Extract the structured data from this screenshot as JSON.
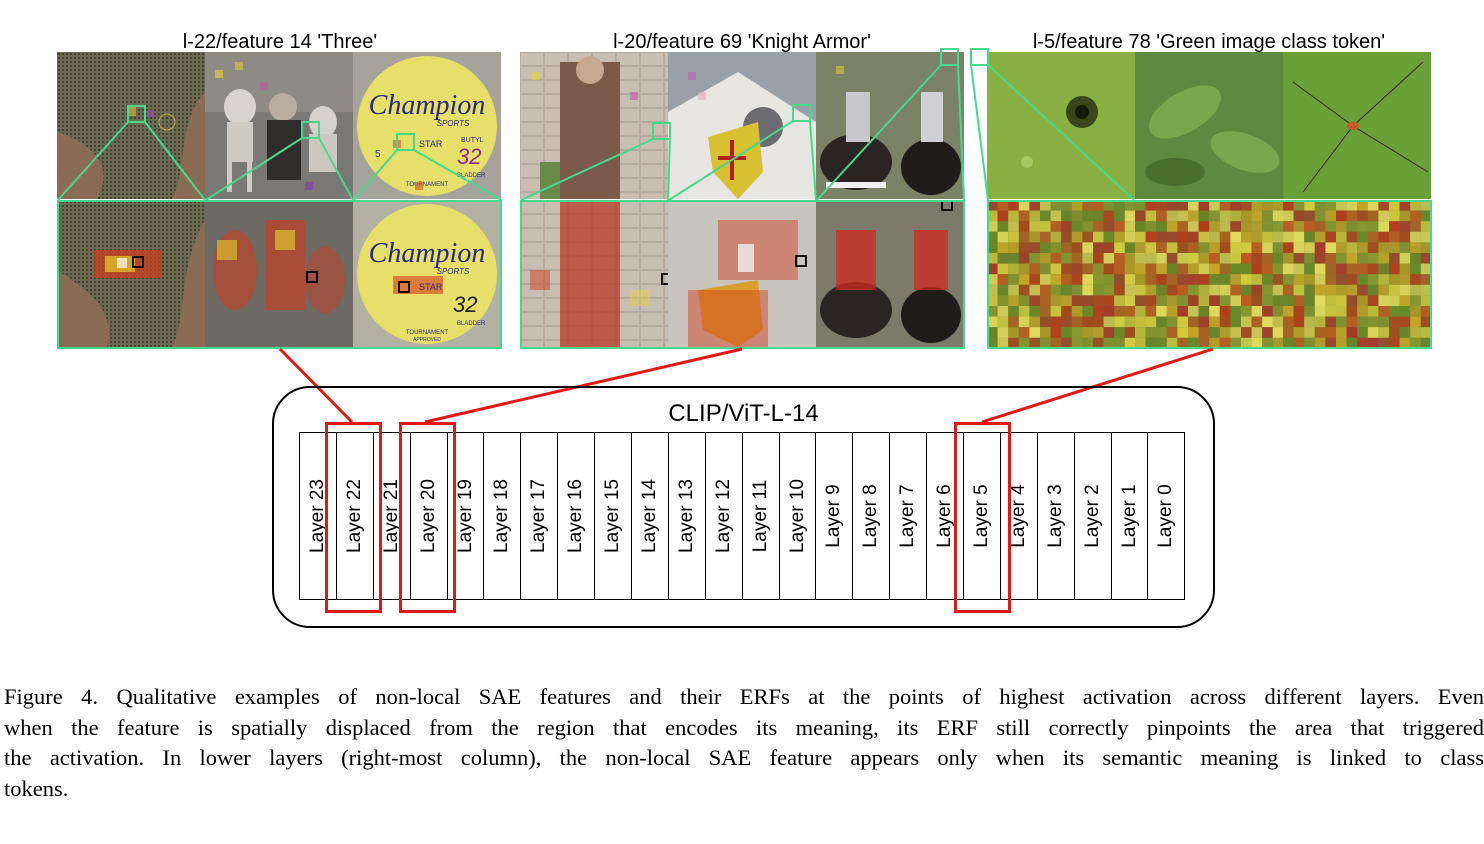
{
  "panels": [
    {
      "title": "l-22/feature 14 'Three'"
    },
    {
      "title": "l-20/feature 69 'Knight Armor'"
    },
    {
      "title": "l-5/feature 78 'Green image class token'"
    }
  ],
  "ball": {
    "brand": "Champion",
    "sub": "SPORTS",
    "star": "STAR",
    "butyl": "BUTYL",
    "num": "32",
    "size": "5",
    "bladder": "BLADDER",
    "tourney": "TOURNAMENT",
    "approved": "APPROVED"
  },
  "architecture": {
    "title": "CLIP/ViT-L-14",
    "layers": [
      "Layer 23",
      "Layer 22",
      "Layer 21",
      "Layer 20",
      "Layer 19",
      "Layer 18",
      "Layer 17",
      "Layer 16",
      "Layer 15",
      "Layer 14",
      "Layer 13",
      "Layer 12",
      "Layer 11",
      "Layer 10",
      "Layer 9",
      "Layer 8",
      "Layer 7",
      "Layer 6",
      "Layer 5",
      "Layer 4",
      "Layer 3",
      "Layer 2",
      "Layer 1",
      "Layer 0"
    ],
    "highlighted": [
      "Layer 22",
      "Layer 20",
      "Layer 5"
    ]
  },
  "caption": {
    "lines": [
      "Figure 4. Qualitative examples of non-local SAE features and their ERFs at the points of highest activation across different layers. Even",
      "when the feature is spatially displaced from the region that encodes its meaning, its ERF still correctly pinpoints the area that triggered",
      "the activation. In lower layers (right-most column), the non-local SAE feature appears only when its semantic meaning is linked to class",
      "tokens."
    ]
  },
  "colors": {
    "highlight": "#e01818",
    "frame": "#46d98d",
    "heat_red": "#d23a1a",
    "heat_yellow": "#e8d82a"
  }
}
